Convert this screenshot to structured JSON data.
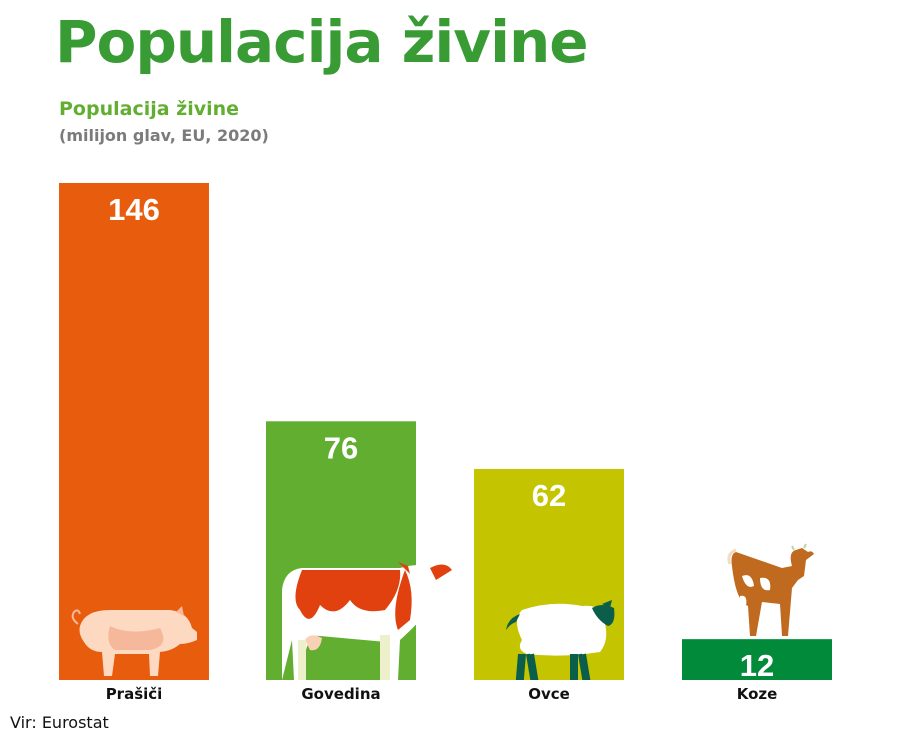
{
  "header": {
    "title": "Populacija živine"
  },
  "chart_data": {
    "type": "bar",
    "title": "Populacija živine",
    "subtitle": "(milijon glav, EU, 2020)",
    "categories": [
      "Prašiči",
      "Govedina",
      "Ovce",
      "Koze"
    ],
    "values": [
      146,
      76,
      62,
      12
    ],
    "colors": [
      "#e85c0d",
      "#62ae31",
      "#c4c400",
      "#008a3a"
    ],
    "icons": [
      "pig-icon",
      "cow-icon",
      "sheep-icon",
      "goat-icon"
    ],
    "ylim": [
      0,
      146
    ],
    "grid": false
  },
  "footer": {
    "source": "Vir: Eurostat"
  }
}
